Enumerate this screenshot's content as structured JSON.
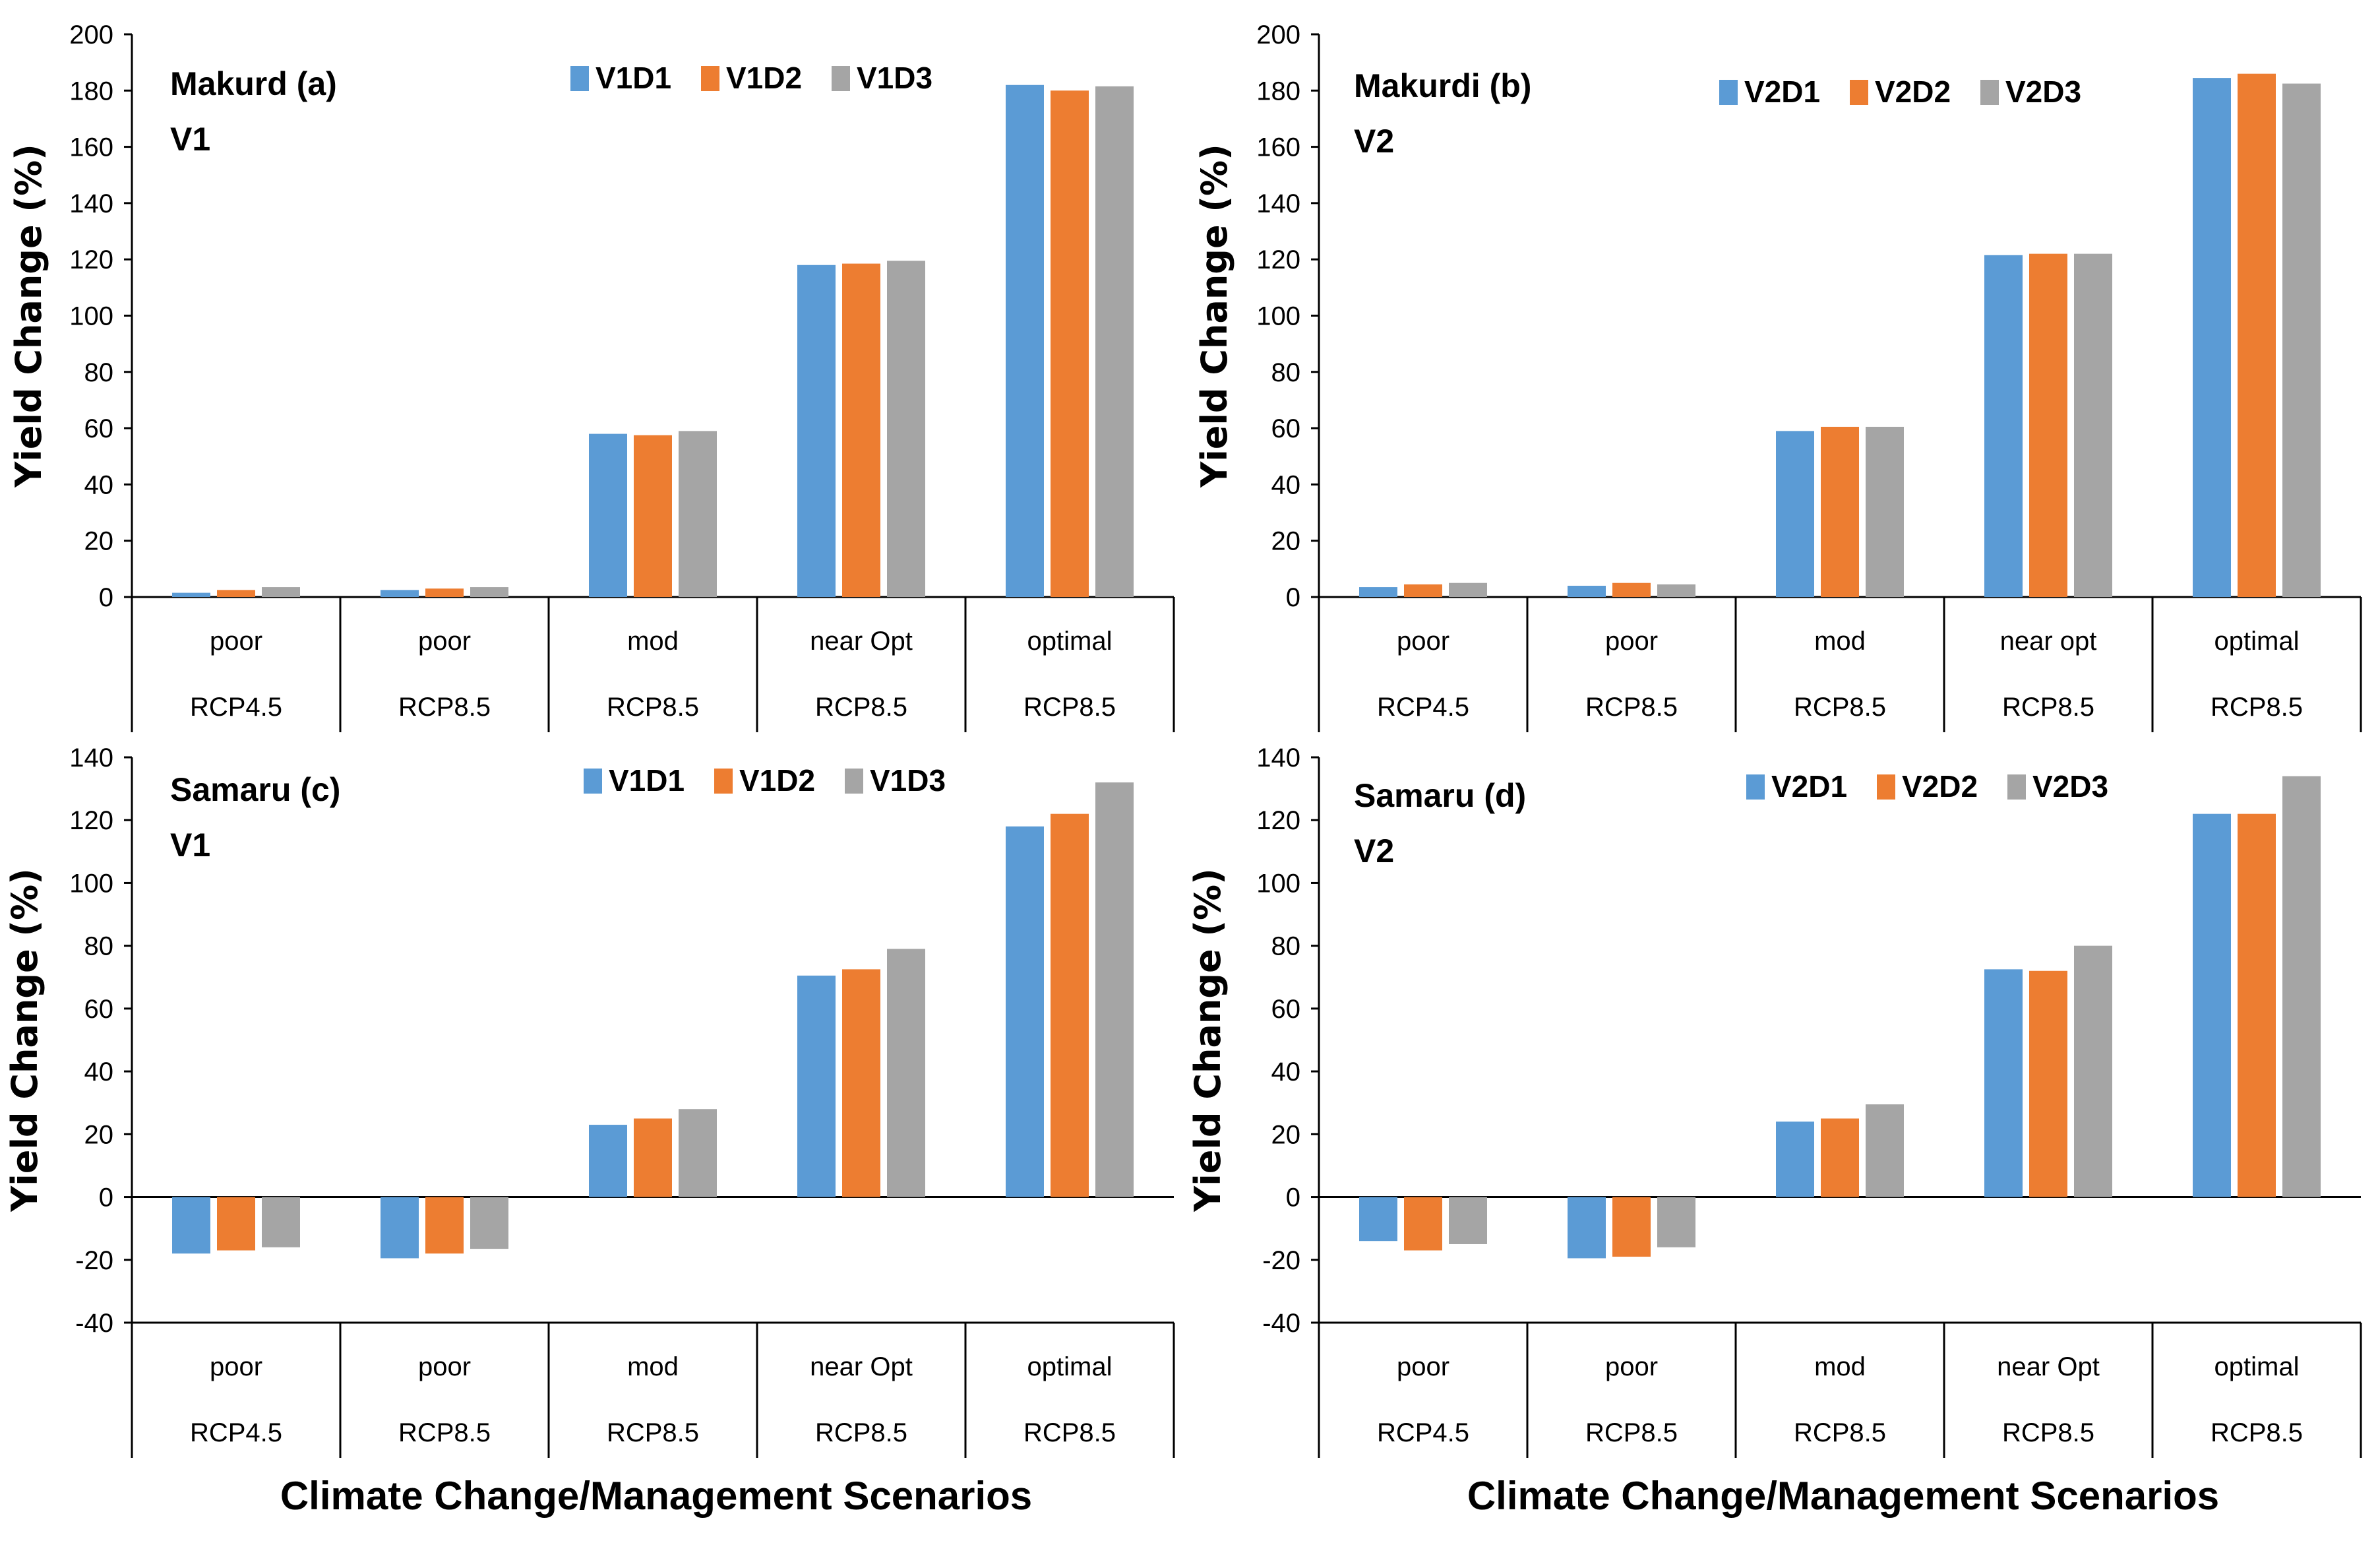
{
  "colors": {
    "series": [
      "#5b9bd5",
      "#ed7d31",
      "#a5a5a5"
    ],
    "axis": "#000000",
    "background": "#ffffff"
  },
  "xlabel_left": "Climate Change/Management Scenarios",
  "xlabel_right": "Climate Change/Management Scenarios",
  "chart_data": [
    {
      "type": "bar",
      "panel": "a",
      "title_line1": "Makurd (a)",
      "title_line2": "V1",
      "ylabel": "Yield Change (%)",
      "ylim": [
        0,
        200
      ],
      "yticks": [
        0,
        20,
        40,
        60,
        80,
        100,
        120,
        140,
        160,
        180,
        200
      ],
      "management": [
        "poor",
        "poor",
        "mod",
        "near Opt",
        "optimal"
      ],
      "rcp": [
        "RCP4.5",
        "RCP8.5",
        "RCP8.5",
        "RCP8.5",
        "RCP8.5"
      ],
      "legend_position": "top-center",
      "series": [
        {
          "name": "V1D1",
          "values": [
            1.5,
            2.5,
            58,
            118,
            182
          ]
        },
        {
          "name": "V1D2",
          "values": [
            2.5,
            3,
            57.5,
            118.5,
            180
          ]
        },
        {
          "name": "V1D3",
          "values": [
            3.5,
            3.5,
            59,
            119.5,
            181.5
          ]
        }
      ]
    },
    {
      "type": "bar",
      "panel": "b",
      "title_line1": "Makurdi (b)",
      "title_line2": "V2",
      "ylabel": "Yield Change (%)",
      "ylim": [
        0,
        200
      ],
      "yticks": [
        0,
        20,
        40,
        60,
        80,
        100,
        120,
        140,
        160,
        180,
        200
      ],
      "management": [
        "poor",
        "poor",
        "mod",
        "near opt",
        "optimal"
      ],
      "rcp": [
        "RCP4.5",
        "RCP8.5",
        "RCP8.5",
        "RCP8.5",
        "RCP8.5"
      ],
      "legend_position": "top-center",
      "series": [
        {
          "name": "V2D1",
          "values": [
            3.5,
            4,
            59,
            121.5,
            184.5
          ]
        },
        {
          "name": "V2D2",
          "values": [
            4.5,
            5,
            60.5,
            122,
            186
          ]
        },
        {
          "name": "V2D3",
          "values": [
            5,
            4.5,
            60.5,
            122,
            182.5
          ]
        }
      ]
    },
    {
      "type": "bar",
      "panel": "c",
      "title_line1": "Samaru (c)",
      "title_line2": "V1",
      "ylabel": "Yield Change (%)",
      "ylim": [
        -40,
        140
      ],
      "yticks": [
        -40,
        -20,
        0,
        20,
        40,
        60,
        80,
        100,
        120,
        140
      ],
      "management": [
        "poor",
        "poor",
        "mod",
        "near Opt",
        "optimal"
      ],
      "rcp": [
        "RCP4.5",
        "RCP8.5",
        "RCP8.5",
        "RCP8.5",
        "RCP8.5"
      ],
      "legend_position": "top-center",
      "series": [
        {
          "name": "V1D1",
          "values": [
            -18,
            -19.5,
            23,
            70.5,
            118
          ]
        },
        {
          "name": "V1D2",
          "values": [
            -17,
            -18,
            25,
            72.5,
            122
          ]
        },
        {
          "name": "V1D3",
          "values": [
            -16,
            -16.5,
            28,
            79,
            132
          ]
        }
      ]
    },
    {
      "type": "bar",
      "panel": "d",
      "title_line1": "Samaru (d)",
      "title_line2": "V2",
      "ylabel": "Yield  Change (%)",
      "ylim": [
        -40,
        140
      ],
      "yticks": [
        -40,
        -20,
        0,
        20,
        40,
        60,
        80,
        100,
        120,
        140
      ],
      "management": [
        "poor",
        "poor",
        "mod",
        "near Opt",
        "optimal"
      ],
      "rcp": [
        "RCP4.5",
        "RCP8.5",
        "RCP8.5",
        "RCP8.5",
        "RCP8.5"
      ],
      "legend_position": "top-center",
      "series": [
        {
          "name": "V2D1",
          "values": [
            -14,
            -19.5,
            24,
            72.5,
            122
          ]
        },
        {
          "name": "V2D2",
          "values": [
            -17,
            -19,
            25,
            72,
            122
          ]
        },
        {
          "name": "V2D3",
          "values": [
            -15,
            -16,
            29.5,
            80,
            134
          ]
        }
      ]
    }
  ]
}
